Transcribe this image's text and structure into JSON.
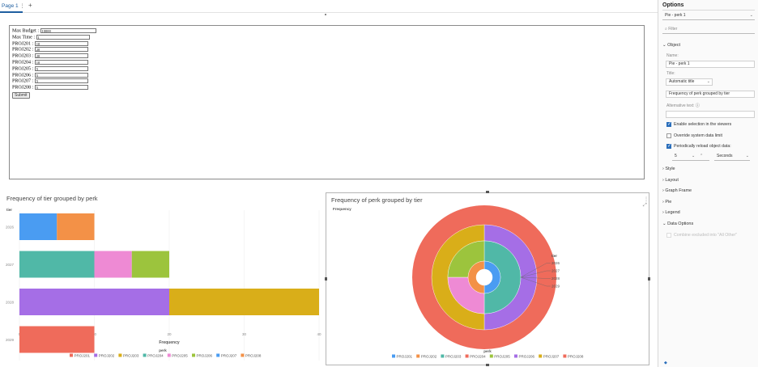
{
  "tabs": {
    "page1": "Page 1",
    "menu": "⋮",
    "add": "+"
  },
  "form": {
    "rows": [
      {
        "label": "Max Budget :",
        "value": "10000",
        "w": 66
      },
      {
        "label": "Max Time :",
        "value": "1",
        "w": 66
      },
      {
        "label": "PROJ201 :",
        "value": "10",
        "w": 66
      },
      {
        "label": "PROJ202 :",
        "value": "20",
        "w": 66
      },
      {
        "label": "PROJ203 :",
        "value": "20",
        "w": 66
      },
      {
        "label": "PROJ204 :",
        "value": "10",
        "w": 66
      },
      {
        "label": "PROJ205 :",
        "value": "5",
        "w": 66
      },
      {
        "label": "PROJ206 :",
        "value": "5",
        "w": 66
      },
      {
        "label": "PROJ207 :",
        "value": "5",
        "w": 66
      },
      {
        "label": "PROJ208 :",
        "value": "5",
        "w": 66
      }
    ],
    "submit": "Submit"
  },
  "chart_data": [
    {
      "type": "bar",
      "orientation": "horizontal",
      "stacked": true,
      "title": "Frequency of tier grouped by perk",
      "ylabel": "tier",
      "xlabel": "Frequency",
      "xlim": [
        0,
        40
      ],
      "xticks": [
        0,
        10,
        20,
        30,
        40
      ],
      "categories": [
        "2026",
        "2027",
        "2028",
        "2029"
      ],
      "legend_title": "perk",
      "series": [
        {
          "name": "PROJ201",
          "color": "#ef6b5b",
          "values": [
            0,
            0,
            0,
            10
          ]
        },
        {
          "name": "PROJ202",
          "color": "#a56ee6",
          "values": [
            0,
            0,
            20,
            0
          ]
        },
        {
          "name": "PROJ203",
          "color": "#d9ae19",
          "values": [
            0,
            0,
            20,
            0
          ]
        },
        {
          "name": "PROJ204",
          "color": "#50b8a7",
          "values": [
            0,
            10,
            0,
            0
          ]
        },
        {
          "name": "PROJ205",
          "color": "#ee8ad4",
          "values": [
            0,
            5,
            0,
            0
          ]
        },
        {
          "name": "PROJ206",
          "color": "#9cc43d",
          "values": [
            0,
            5,
            0,
            0
          ]
        },
        {
          "name": "PROJ207",
          "color": "#4a9cf2",
          "values": [
            5,
            0,
            0,
            0
          ]
        },
        {
          "name": "PROJ208",
          "color": "#f39147",
          "values": [
            5,
            0,
            0,
            0
          ]
        }
      ]
    },
    {
      "type": "pie",
      "variant": "multi-ring donut",
      "title": "Frequency of perk grouped by tier",
      "subtitle": "Frequency",
      "legend_title": "tier",
      "legend_bottom_title": "perk",
      "tiers": [
        "2026",
        "2027",
        "2028",
        "2029"
      ],
      "rings": [
        {
          "tier": "2029",
          "slices": [
            {
              "name": "PROJ201",
              "value": 10,
              "color": "#ef6b5b"
            }
          ]
        },
        {
          "tier": "2028",
          "slices": [
            {
              "name": "PROJ202",
              "value": 20,
              "color": "#a56ee6"
            },
            {
              "name": "PROJ203",
              "value": 20,
              "color": "#d9ae19"
            }
          ]
        },
        {
          "tier": "2027",
          "slices": [
            {
              "name": "PROJ204",
              "value": 10,
              "color": "#50b8a7"
            },
            {
              "name": "PROJ205",
              "value": 5,
              "color": "#ee8ad4"
            },
            {
              "name": "PROJ206",
              "value": 5,
              "color": "#9cc43d"
            }
          ]
        },
        {
          "tier": "2026",
          "slices": [
            {
              "name": "PROJ207",
              "value": 5,
              "color": "#4a9cf2"
            },
            {
              "name": "PROJ208",
              "value": 5,
              "color": "#f39147"
            }
          ]
        }
      ],
      "legend": [
        {
          "name": "PROJ201",
          "color": "#4a9cf2"
        },
        {
          "name": "PROJ202",
          "color": "#f39147"
        },
        {
          "name": "PROJ203",
          "color": "#50b8a7"
        },
        {
          "name": "PROJ204",
          "color": "#ef6b5b"
        },
        {
          "name": "PROJ205",
          "color": "#9cc43d"
        },
        {
          "name": "PROJ206",
          "color": "#a56ee6"
        },
        {
          "name": "PROJ207",
          "color": "#d9ae19"
        },
        {
          "name": "PROJ208",
          "color": "#ef6b5b"
        }
      ]
    }
  ],
  "panel": {
    "title": "Options",
    "selector": "Pie - perk 1",
    "filter_placeholder": "Filter",
    "object_section": "Object",
    "name_label": "Name:",
    "name_value": "Pie - perk 1",
    "title_label": "Title:",
    "title_mode": "Automatic title",
    "title_value": "Frequency of perk grouped by tier",
    "alt_label": "Alternative text:",
    "enable_selection": "Enable selection in the viewers",
    "override_limit": "Override system data limit",
    "periodic_reload": "Periodically reload object data:",
    "reload_value": "5",
    "reload_unit": "Seconds",
    "sections": [
      "Style",
      "Layout",
      "Graph Frame",
      "Pie",
      "Legend"
    ],
    "data_options": "Data Options",
    "combine_text": "Combine excluded into \"All Other\""
  },
  "colors": {
    "accent": "#2a6ebb"
  }
}
